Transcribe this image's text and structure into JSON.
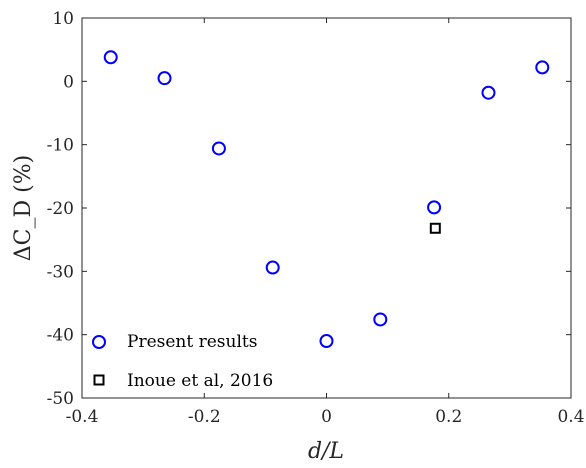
{
  "chart_data": {
    "type": "scatter",
    "title": "",
    "xlabel": "d/L",
    "ylabel": "ΔC_D (%)",
    "xlim": [
      -0.4,
      0.4
    ],
    "ylim": [
      -50,
      10
    ],
    "xticks": [
      -0.4,
      -0.2,
      0,
      0.2,
      0.4
    ],
    "yticks": [
      -50,
      -40,
      -30,
      -20,
      -10,
      0,
      10
    ],
    "xtick_labels": [
      "-0.4",
      "-0.2",
      "0",
      "0.2",
      "0.4"
    ],
    "ytick_labels": [
      "-50",
      "-40",
      "-30",
      "-20",
      "-10",
      "0",
      "10"
    ],
    "grid": false,
    "legend_position": "bottom-left",
    "series": [
      {
        "name": "Present results",
        "marker": "circle",
        "color": "#0000ff",
        "x": [
          -0.353,
          -0.265,
          -0.176,
          -0.088,
          0,
          0.088,
          0.176,
          0.265,
          0.353
        ],
        "y": [
          3.8,
          0.5,
          -10.6,
          -29.4,
          -41.0,
          -37.6,
          -19.9,
          -1.8,
          2.2
        ]
      },
      {
        "name": "Inoue et al, 2016",
        "marker": "square",
        "color": "#000000",
        "x": [
          0.178
        ],
        "y": [
          -23.2
        ]
      }
    ]
  }
}
